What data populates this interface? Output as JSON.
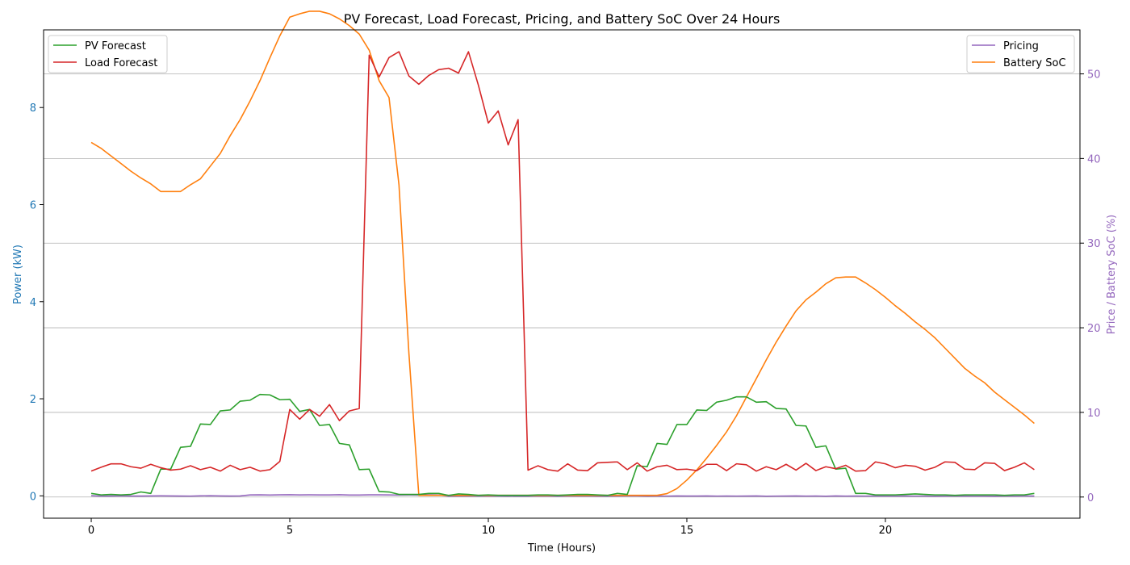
{
  "chart_data": {
    "type": "line",
    "title": "PV Forecast, Load Forecast, Pricing, and Battery SoC Over 24 Hours",
    "xlabel": "Time (Hours)",
    "ylabel_left": "Power (kW)",
    "ylabel_right": "Price / Battery SoC (%)",
    "xlim": [
      -1.2,
      24.9
    ],
    "ylim_left": [
      -0.46,
      9.6
    ],
    "ylim_right": [
      -2.5,
      55.2
    ],
    "xticks": [
      0,
      5,
      10,
      15,
      20
    ],
    "yticks_left": [
      0,
      2,
      4,
      6,
      8
    ],
    "yticks_right": [
      0,
      10,
      20,
      30,
      40,
      50
    ],
    "grid": "right-axis horizontal",
    "legend_left": "top-left",
    "legend_right": "top-right",
    "colors": {
      "pv": "#2ca02c",
      "load": "#d62728",
      "pricing": "#9467bd",
      "soc": "#ff7f0e",
      "left_axis": "#1f77b4",
      "right_axis": "#9467bd"
    },
    "x": [
      0,
      0.25,
      0.5,
      0.75,
      1,
      1.25,
      1.5,
      1.75,
      2,
      2.25,
      2.5,
      2.75,
      3,
      3.25,
      3.5,
      3.75,
      4,
      4.25,
      4.5,
      4.75,
      5,
      5.25,
      5.5,
      5.75,
      6,
      6.25,
      6.5,
      6.75,
      7,
      7.25,
      7.5,
      7.75,
      8,
      8.25,
      8.5,
      8.75,
      9,
      9.25,
      9.5,
      9.75,
      10,
      10.25,
      10.5,
      10.75,
      11,
      11.25,
      11.5,
      11.75,
      12,
      12.25,
      12.5,
      12.75,
      13,
      13.25,
      13.5,
      13.75,
      14,
      14.25,
      14.5,
      14.75,
      15,
      15.25,
      15.5,
      15.75,
      16,
      16.25,
      16.5,
      16.75,
      17,
      17.25,
      17.5,
      17.75,
      18,
      18.25,
      18.5,
      18.75,
      19,
      19.25,
      19.5,
      19.75,
      20,
      20.25,
      20.5,
      20.75,
      21,
      21.25,
      21.5,
      21.75,
      22,
      22.25,
      22.5,
      22.75,
      23,
      23.25,
      23.5,
      23.75
    ],
    "series": [
      {
        "name": "PV Forecast",
        "axis": "left",
        "values": [
          0.05,
          0.02,
          0.03,
          0.02,
          0.03,
          0.08,
          0.05,
          0.55,
          0.55,
          1.0,
          1.02,
          1.48,
          1.47,
          1.75,
          1.77,
          1.95,
          1.97,
          2.09,
          2.08,
          1.98,
          1.99,
          1.74,
          1.78,
          1.45,
          1.47,
          1.08,
          1.05,
          0.54,
          0.55,
          0.09,
          0.08,
          0.03,
          0.03,
          0.03,
          0.05,
          0.05,
          0.01,
          0.04,
          0.03,
          0.01,
          0.02,
          0.01,
          0.01,
          0.01,
          0.01,
          0.02,
          0.02,
          0.01,
          0.02,
          0.03,
          0.03,
          0.02,
          0.01,
          0.05,
          0.03,
          0.62,
          0.6,
          1.08,
          1.06,
          1.47,
          1.47,
          1.77,
          1.76,
          1.93,
          1.97,
          2.04,
          2.04,
          1.93,
          1.94,
          1.8,
          1.79,
          1.45,
          1.44,
          1.0,
          1.03,
          0.55,
          0.57,
          0.05,
          0.05,
          0.02,
          0.02,
          0.02,
          0.03,
          0.04,
          0.03,
          0.02,
          0.02,
          0.01,
          0.02,
          0.02,
          0.02,
          0.02,
          0.01,
          0.02,
          0.02,
          0.05
        ]
      },
      {
        "name": "Load Forecast",
        "axis": "left",
        "values": [
          0.51,
          0.59,
          0.66,
          0.66,
          0.6,
          0.57,
          0.65,
          0.58,
          0.53,
          0.55,
          0.62,
          0.54,
          0.59,
          0.51,
          0.63,
          0.54,
          0.59,
          0.51,
          0.54,
          0.71,
          1.78,
          1.58,
          1.78,
          1.64,
          1.88,
          1.55,
          1.75,
          1.8,
          9.08,
          8.63,
          9.03,
          9.15,
          8.65,
          8.48,
          8.66,
          8.78,
          8.81,
          8.71,
          9.15,
          8.46,
          7.68,
          7.93,
          7.23,
          7.75,
          0.53,
          0.62,
          0.54,
          0.51,
          0.66,
          0.53,
          0.52,
          0.68,
          0.69,
          0.7,
          0.54,
          0.68,
          0.51,
          0.6,
          0.63,
          0.54,
          0.55,
          0.52,
          0.65,
          0.65,
          0.52,
          0.66,
          0.64,
          0.51,
          0.6,
          0.54,
          0.65,
          0.53,
          0.67,
          0.52,
          0.6,
          0.56,
          0.63,
          0.51,
          0.52,
          0.7,
          0.66,
          0.58,
          0.63,
          0.61,
          0.53,
          0.59,
          0.7,
          0.69,
          0.55,
          0.54,
          0.68,
          0.67,
          0.52,
          0.59,
          0.68,
          0.54
        ]
      },
      {
        "name": "Pricing",
        "axis": "right",
        "values": [
          0.15,
          0.12,
          0.12,
          0.14,
          0.12,
          0.12,
          0.13,
          0.14,
          0.13,
          0.12,
          0.11,
          0.14,
          0.15,
          0.13,
          0.12,
          0.13,
          0.25,
          0.26,
          0.24,
          0.26,
          0.27,
          0.25,
          0.26,
          0.25,
          0.25,
          0.27,
          0.24,
          0.24,
          0.26,
          0.26,
          0.25,
          0.23,
          0.25,
          0.23,
          0.26,
          0.24,
          0.1,
          0.12,
          0.11,
          0.13,
          0.12,
          0.11,
          0.1,
          0.12,
          0.1,
          0.13,
          0.11,
          0.1,
          0.12,
          0.11,
          0.13,
          0.1,
          0.1,
          0.12,
          0.13,
          0.13,
          0.1,
          0.12,
          0.11,
          0.13,
          0.12,
          0.12,
          0.13,
          0.11,
          0.12,
          0.11,
          0.12,
          0.13,
          0.1,
          0.11,
          0.12,
          0.13,
          0.11,
          0.12,
          0.1,
          0.13,
          0.11,
          0.12,
          0.11,
          0.13,
          0.12,
          0.11,
          0.13,
          0.11,
          0.12,
          0.1,
          0.12,
          0.11,
          0.13,
          0.11,
          0.12,
          0.1,
          0.12,
          0.11,
          0.13,
          0.12
        ]
      },
      {
        "name": "Battery SoC",
        "axis": "right",
        "values": [
          41.9,
          41.2,
          40.3,
          39.4,
          38.5,
          37.7,
          37.0,
          36.1,
          36.1,
          36.1,
          36.9,
          37.6,
          39.1,
          40.6,
          42.7,
          44.6,
          46.8,
          49.2,
          51.9,
          54.5,
          56.7,
          57.1,
          57.4,
          57.4,
          57.1,
          56.5,
          55.7,
          54.7,
          52.8,
          49.2,
          47.2,
          36.9,
          17.0,
          0.2,
          0.2,
          0.2,
          0.2,
          0.2,
          0.2,
          0.2,
          0.2,
          0.2,
          0.2,
          0.2,
          0.2,
          0.2,
          0.2,
          0.2,
          0.2,
          0.2,
          0.2,
          0.2,
          0.2,
          0.2,
          0.2,
          0.2,
          0.2,
          0.2,
          0.4,
          1.0,
          2.0,
          3.2,
          4.6,
          6.1,
          7.7,
          9.6,
          11.8,
          14.0,
          16.2,
          18.3,
          20.2,
          22.0,
          23.3,
          24.2,
          25.2,
          25.9,
          26.0,
          26.0,
          25.3,
          24.5,
          23.6,
          22.6,
          21.7,
          20.7,
          19.8,
          18.8,
          17.6,
          16.4,
          15.2,
          14.3,
          13.5,
          12.4,
          11.5,
          10.6,
          9.7,
          8.7
        ]
      }
    ]
  }
}
